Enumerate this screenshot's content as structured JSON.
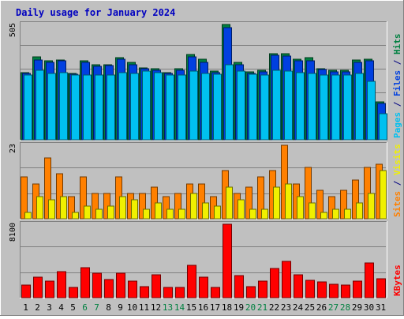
{
  "chart_data": {
    "type": "bar",
    "title": "Daily usage for January 2024",
    "categories": [
      "1",
      "2",
      "3",
      "4",
      "5",
      "6",
      "7",
      "8",
      "9",
      "10",
      "11",
      "12",
      "13",
      "14",
      "15",
      "16",
      "17",
      "18",
      "19",
      "20",
      "21",
      "22",
      "23",
      "24",
      "25",
      "26",
      "27",
      "28",
      "29",
      "30",
      "31"
    ],
    "weekend_days": [
      "6",
      "7",
      "13",
      "14",
      "20",
      "21",
      "27",
      "28"
    ],
    "panels": [
      {
        "name": "hits-files-pages",
        "ymax_label": "505",
        "ymax": 505,
        "right_label_parts": [
          {
            "text": "Pages",
            "color": "#00C0F0"
          },
          {
            "text": " / ",
            "color": "#000080"
          },
          {
            "text": "Files",
            "color": "#0040E0"
          },
          {
            "text": " / ",
            "color": "#000080"
          },
          {
            "text": "Hits",
            "color": "#008040"
          }
        ],
        "series": [
          {
            "name": "Hits",
            "color": "#008040",
            "values": [
              295,
              362,
              347,
              350,
              292,
              345,
              330,
              330,
              360,
              340,
              315,
              310,
              293,
              310,
              375,
              352,
              300,
              505,
              340,
              297,
              303,
              377,
              378,
              353,
              358,
              313,
              303,
              303,
              348,
              352,
              165
            ]
          },
          {
            "name": "Files",
            "color": "#0040E0",
            "values": [
              290,
              350,
              340,
              345,
              287,
              338,
              322,
              325,
              352,
              330,
              310,
              305,
              290,
              305,
              363,
              340,
              295,
              490,
              330,
              290,
              298,
              370,
              368,
              345,
              345,
              308,
              298,
              298,
              340,
              345,
              160
            ]
          },
          {
            "name": "Pages",
            "color": "#00C0F0",
            "values": [
              285,
              305,
              290,
              295,
              285,
              285,
              285,
              285,
              295,
              290,
              300,
              295,
              285,
              285,
              300,
              290,
              288,
              327,
              300,
              287,
              285,
              305,
              300,
              295,
              290,
              285,
              285,
              285,
              290,
              255,
              115
            ]
          }
        ]
      },
      {
        "name": "visits-sites",
        "ymax_label": "23",
        "ymax": 23,
        "right_label_parts": [
          {
            "text": "Sites",
            "color": "#FF8000"
          },
          {
            "text": " / ",
            "color": "#000080"
          },
          {
            "text": "Visits",
            "color": "#F0F000"
          }
        ],
        "series": [
          {
            "name": "Visits",
            "color": "#FF8000",
            "values": [
              13,
              11,
              19,
              14,
              7,
              13,
              8,
              8,
              13,
              8,
              8,
              10,
              7,
              8,
              11,
              11,
              7,
              15,
              8,
              10,
              13,
              15,
              23,
              11,
              16,
              9,
              7,
              9,
              12,
              16,
              17
            ]
          },
          {
            "name": "Sites",
            "color": "#F0F000",
            "values": [
              2,
              7,
              6,
              7,
              2,
              4,
              3,
              4,
              7,
              6,
              3,
              5,
              3,
              3,
              8,
              5,
              4,
              10,
              6,
              3,
              3,
              10,
              11,
              7,
              5,
              2,
              3,
              3,
              5,
              8,
              15
            ]
          }
        ]
      },
      {
        "name": "kbytes",
        "ymax_label": "8100",
        "ymax": 8100,
        "right_label_parts": [
          {
            "text": "KBytes",
            "color": "#FF0000"
          }
        ],
        "series": [
          {
            "name": "KBytes",
            "color": "#FF0000",
            "values": [
              1400,
              2300,
              1800,
              2900,
              1100,
              3300,
              2700,
              2000,
              2700,
              1800,
              1200,
              2500,
              1100,
              1100,
              3600,
              2300,
              1100,
              8100,
              2400,
              1200,
              1800,
              3200,
              4000,
              2500,
              1900,
              1700,
              1500,
              1400,
              1800,
              3800,
              2100
            ]
          }
        ]
      }
    ]
  }
}
